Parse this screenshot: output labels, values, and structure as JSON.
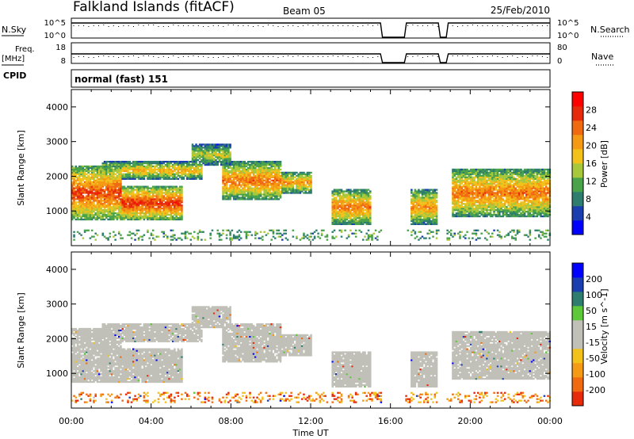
{
  "header": {
    "station": "Falkland Islands (fitACF)",
    "beam": "Beam 05",
    "date": "25/Feb/2010"
  },
  "side_labels": {
    "nsky": "N.Sky",
    "freq_line1": "Freq.",
    "freq_line2": "[MHz]",
    "cpid": "CPID",
    "nsearch": "N.Search",
    "nave": "Nave"
  },
  "noise_panel": {
    "left_ticks": [
      "10^5",
      "10^0"
    ],
    "right_ticks": [
      "10^5",
      "10^0"
    ]
  },
  "freq_panel": {
    "left_ticks": [
      "18",
      "8"
    ],
    "right_ticks": [
      "80",
      "0"
    ]
  },
  "cpid_text": "normal (fast) 151",
  "x_axis": {
    "label": "Time UT",
    "ticks": [
      "00:00",
      "04:00",
      "08:00",
      "12:00",
      "16:00",
      "20:00",
      "00:00"
    ],
    "range_hours": [
      0,
      24
    ]
  },
  "colors": {
    "power_scale": [
      "#0000ff",
      "#1a3db0",
      "#2e7d6e",
      "#4aa24a",
      "#a8c83c",
      "#f2c21b",
      "#f49a14",
      "#f06a10",
      "#e62a0a",
      "#ff0000"
    ],
    "velocity_scale": [
      "#e62a0a",
      "#f06a10",
      "#f49a14",
      "#f2c21b",
      "#c0c0b8",
      "#c0c0b8",
      "#5cc83a",
      "#2e7d6e",
      "#1a3db0",
      "#0000ff"
    ],
    "ground_scatter": "#c0c0b8"
  },
  "chart_data": [
    {
      "type": "line",
      "name": "noise",
      "x_hours": [
        0,
        15.5,
        15.6,
        16.7,
        16.8,
        18.4,
        18.5,
        18.8,
        18.9,
        24
      ],
      "level": [
        1,
        1,
        0,
        0,
        1,
        1,
        0,
        0,
        1,
        1
      ],
      "gaps_hours": [
        [
          15.5,
          16.7
        ],
        [
          18.4,
          18.8
        ]
      ]
    },
    {
      "type": "line",
      "name": "frequency",
      "x_hours": [
        0,
        15.5,
        15.6,
        16.7,
        16.8,
        18.4,
        18.5,
        18.8,
        18.9,
        24
      ],
      "level": [
        1,
        1,
        0,
        0,
        1,
        1,
        0,
        0,
        1,
        1
      ],
      "gaps_hours": [
        [
          15.5,
          16.7
        ],
        [
          18.4,
          18.8
        ]
      ]
    },
    {
      "type": "heatmap",
      "name": "power",
      "ylabel": "Slant Range [km]",
      "ylim": [
        0,
        4500
      ],
      "y_ticks": [
        1000,
        2000,
        3000,
        4000
      ],
      "colorbar_label": "Power [dB]",
      "colorbar_ticks": [
        4,
        8,
        12,
        16,
        20,
        24,
        28
      ],
      "colorbar_range": [
        0,
        32
      ],
      "regions": [
        {
          "t0": 0.0,
          "t1": 2.5,
          "r0": 700,
          "r1": 2300,
          "level": 27
        },
        {
          "t0": 2.0,
          "t1": 5.5,
          "r0": 700,
          "r1": 1700,
          "level": 28
        },
        {
          "t0": 1.5,
          "t1": 6.5,
          "r0": 1900,
          "r1": 2400,
          "level": 20
        },
        {
          "t0": 6.0,
          "t1": 8.0,
          "r0": 2300,
          "r1": 2900,
          "level": 16
        },
        {
          "t0": 7.5,
          "t1": 10.5,
          "r0": 1300,
          "r1": 2400,
          "level": 24
        },
        {
          "t0": 10.0,
          "t1": 12.0,
          "r0": 1500,
          "r1": 2100,
          "level": 22
        },
        {
          "t0": 13.0,
          "t1": 15.0,
          "r0": 600,
          "r1": 1600,
          "level": 24
        },
        {
          "t0": 17.0,
          "t1": 18.3,
          "r0": 600,
          "r1": 1600,
          "level": 22
        },
        {
          "t0": 19.0,
          "t1": 24.0,
          "r0": 800,
          "r1": 2200,
          "level": 24
        }
      ],
      "gaps_hours": [
        [
          12.8,
          13.0
        ],
        [
          15.5,
          16.7
        ],
        [
          18.4,
          18.8
        ]
      ]
    },
    {
      "type": "heatmap",
      "name": "velocity",
      "ylabel": "Slant Range [km]",
      "ylim": [
        0,
        4500
      ],
      "y_ticks": [
        1000,
        2000,
        3000,
        4000
      ],
      "colorbar_label": "Velocity [m s^-1]",
      "colorbar_ticks": [
        200,
        100,
        50,
        15,
        -15,
        -50,
        -100,
        -200
      ],
      "ground_scatter_regions": [
        {
          "t0": 0.0,
          "t1": 2.5,
          "r0": 700,
          "r1": 2300
        },
        {
          "t0": 2.0,
          "t1": 5.5,
          "r0": 700,
          "r1": 1700
        },
        {
          "t0": 1.5,
          "t1": 6.5,
          "r0": 1900,
          "r1": 2400
        },
        {
          "t0": 6.0,
          "t1": 8.0,
          "r0": 2300,
          "r1": 2900
        },
        {
          "t0": 7.5,
          "t1": 10.5,
          "r0": 1300,
          "r1": 2400
        },
        {
          "t0": 10.0,
          "t1": 12.0,
          "r0": 1500,
          "r1": 2100
        },
        {
          "t0": 13.0,
          "t1": 15.0,
          "r0": 600,
          "r1": 1600
        },
        {
          "t0": 17.0,
          "t1": 18.3,
          "r0": 600,
          "r1": 1600
        },
        {
          "t0": 19.0,
          "t1": 24.0,
          "r0": 800,
          "r1": 2200
        }
      ],
      "gaps_hours": [
        [
          12.8,
          13.0
        ],
        [
          15.5,
          16.7
        ],
        [
          18.4,
          18.8
        ]
      ]
    }
  ]
}
